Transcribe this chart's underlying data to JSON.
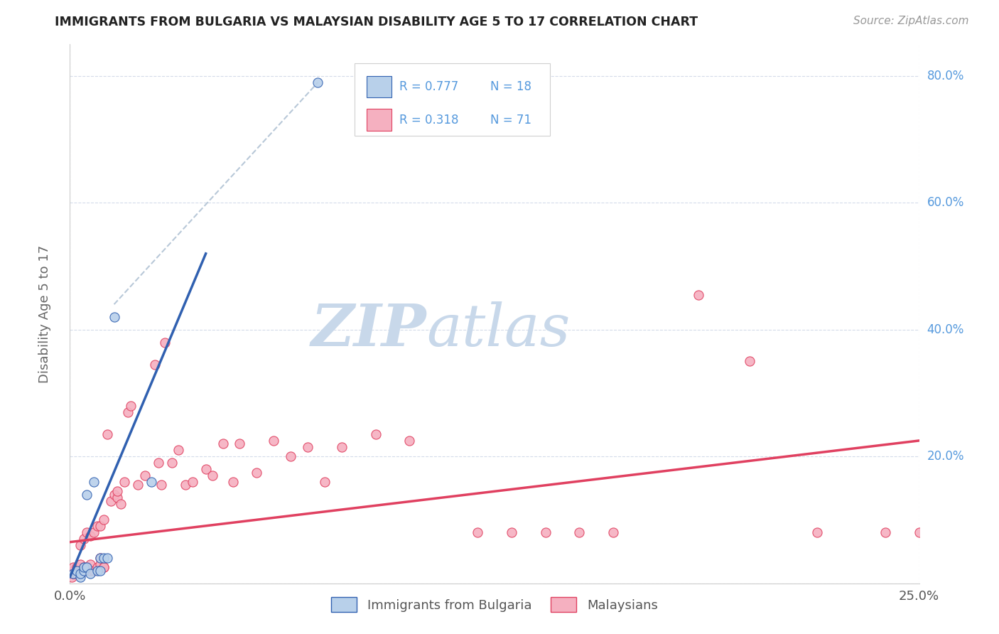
{
  "title": "IMMIGRANTS FROM BULGARIA VS MALAYSIAN DISABILITY AGE 5 TO 17 CORRELATION CHART",
  "source": "Source: ZipAtlas.com",
  "ylabel": "Disability Age 5 to 17",
  "legend_r1": "R = 0.777",
  "legend_n1": "N = 18",
  "legend_r2": "R = 0.318",
  "legend_n2": "N = 71",
  "legend_label1": "Immigrants from Bulgaria",
  "legend_label2": "Malaysians",
  "bg_color": "#ffffff",
  "grid_color": "#d0d8e8",
  "blue_scatter_color": "#b8d0ea",
  "pink_scatter_color": "#f5b0c0",
  "blue_line_color": "#3060b0",
  "pink_line_color": "#e04060",
  "dashed_line_color": "#b8c8d8",
  "title_color": "#222222",
  "right_axis_color": "#5599dd",
  "watermark_color_zip": "#c8d8ea",
  "watermark_color_atlas": "#c8d8ea",
  "blue_points_x": [
    0.001,
    0.002,
    0.003,
    0.003,
    0.004,
    0.004,
    0.005,
    0.005,
    0.006,
    0.007,
    0.008,
    0.009,
    0.009,
    0.01,
    0.011,
    0.013,
    0.024,
    0.073
  ],
  "blue_points_y": [
    0.015,
    0.02,
    0.01,
    0.015,
    0.02,
    0.025,
    0.025,
    0.14,
    0.015,
    0.16,
    0.02,
    0.02,
    0.04,
    0.04,
    0.04,
    0.42,
    0.16,
    0.79
  ],
  "pink_points_x": [
    0.0005,
    0.001,
    0.001,
    0.001,
    0.002,
    0.002,
    0.002,
    0.003,
    0.003,
    0.003,
    0.003,
    0.004,
    0.004,
    0.004,
    0.005,
    0.005,
    0.006,
    0.006,
    0.006,
    0.007,
    0.007,
    0.008,
    0.008,
    0.009,
    0.009,
    0.009,
    0.01,
    0.01,
    0.01,
    0.011,
    0.012,
    0.013,
    0.014,
    0.014,
    0.015,
    0.016,
    0.017,
    0.018,
    0.02,
    0.022,
    0.025,
    0.026,
    0.027,
    0.028,
    0.03,
    0.032,
    0.034,
    0.036,
    0.04,
    0.042,
    0.045,
    0.048,
    0.05,
    0.055,
    0.06,
    0.065,
    0.07,
    0.075,
    0.08,
    0.09,
    0.1,
    0.12,
    0.13,
    0.14,
    0.15,
    0.16,
    0.185,
    0.2,
    0.22,
    0.24,
    0.25
  ],
  "pink_points_y": [
    0.01,
    0.02,
    0.015,
    0.025,
    0.015,
    0.02,
    0.025,
    0.02,
    0.025,
    0.03,
    0.06,
    0.02,
    0.07,
    0.025,
    0.025,
    0.08,
    0.02,
    0.075,
    0.03,
    0.02,
    0.08,
    0.025,
    0.09,
    0.04,
    0.09,
    0.03,
    0.025,
    0.1,
    0.025,
    0.235,
    0.13,
    0.14,
    0.135,
    0.145,
    0.125,
    0.16,
    0.27,
    0.28,
    0.155,
    0.17,
    0.345,
    0.19,
    0.155,
    0.38,
    0.19,
    0.21,
    0.155,
    0.16,
    0.18,
    0.17,
    0.22,
    0.16,
    0.22,
    0.175,
    0.225,
    0.2,
    0.215,
    0.16,
    0.215,
    0.235,
    0.225,
    0.08,
    0.08,
    0.08,
    0.08,
    0.08,
    0.455,
    0.35,
    0.08,
    0.08,
    0.08
  ],
  "xlim": [
    0.0,
    0.25
  ],
  "ylim": [
    0.0,
    0.85
  ],
  "blue_trend_x": [
    0.0,
    0.04
  ],
  "blue_trend_y": [
    0.01,
    0.52
  ],
  "pink_trend_x": [
    0.0,
    0.25
  ],
  "pink_trend_y": [
    0.065,
    0.225
  ],
  "dashed_trend_x": [
    0.013,
    0.073
  ],
  "dashed_trend_y": [
    0.44,
    0.79
  ],
  "yticks": [
    0.0,
    0.2,
    0.4,
    0.6,
    0.8
  ],
  "ytick_labels_right": [
    "0.0%",
    "20.0%",
    "40.0%",
    "60.0%",
    "80.0%"
  ]
}
